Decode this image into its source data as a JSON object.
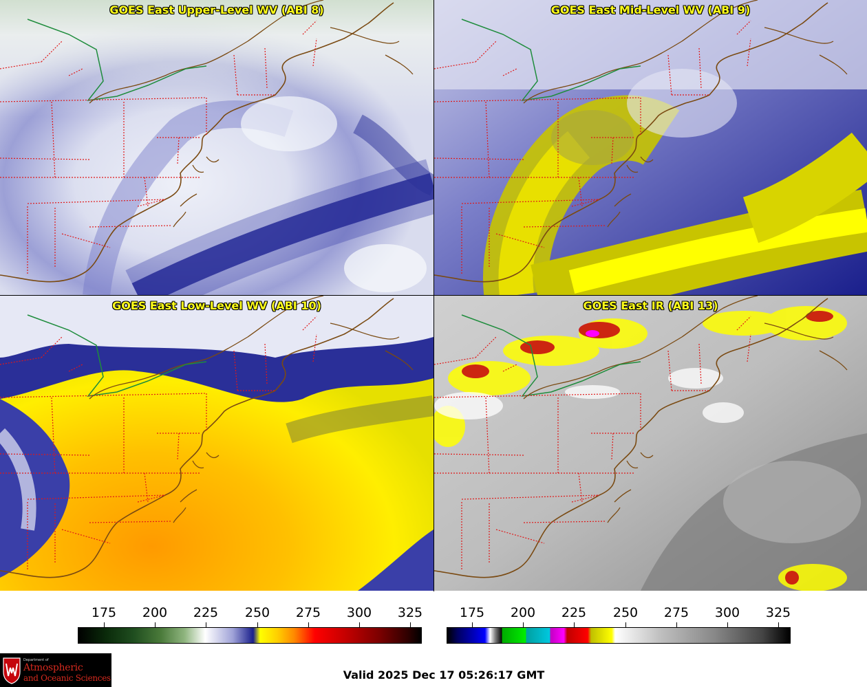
{
  "panels": [
    {
      "title": "GOES East Upper-Level WV (ABI 8)"
    },
    {
      "title": "GOES East Mid-Level WV (ABI 9)"
    },
    {
      "title": "GOES East Low-Level WV (ABI 10)"
    },
    {
      "title": "GOES East IR (ABI 13)"
    }
  ],
  "colorbars": {
    "wv": {
      "ticks": [
        "175",
        "200",
        "225",
        "250",
        "275",
        "300",
        "325"
      ]
    },
    "ir": {
      "ticks": [
        "175",
        "200",
        "225",
        "250",
        "275",
        "300",
        "325"
      ]
    }
  },
  "logo": {
    "line1": "Department of",
    "line2": "Atmospheric",
    "line3": "and Oceanic Sciences"
  },
  "valid_time": "Valid 2025 Dec 17 05:26:17 GMT"
}
